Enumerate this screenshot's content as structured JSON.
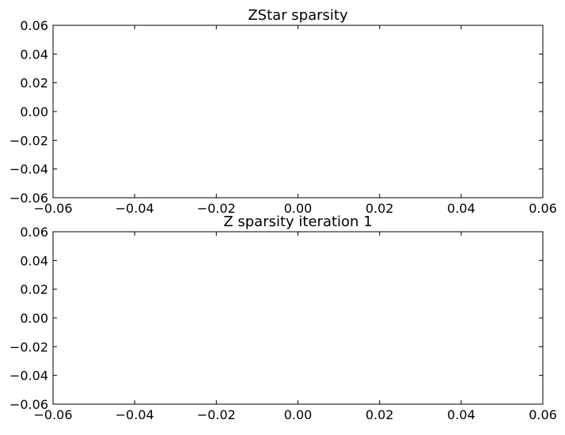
{
  "chart_data": [
    {
      "type": "scatter",
      "title": "ZStar sparsity",
      "xlabel": "",
      "ylabel": "",
      "xlim": [
        -0.06,
        0.06
      ],
      "ylim": [
        -0.06,
        0.06
      ],
      "xticks": [
        "−0.06",
        "−0.04",
        "−0.02",
        "0.00",
        "0.02",
        "0.04",
        "0.06"
      ],
      "yticks": [
        "−0.06",
        "−0.04",
        "−0.02",
        "0.00",
        "0.02",
        "0.04",
        "0.06"
      ],
      "grid": false,
      "series": [
        {
          "x": [],
          "y": []
        }
      ]
    },
    {
      "type": "scatter",
      "title": "Z sparsity iteration 1",
      "xlabel": "",
      "ylabel": "",
      "xlim": [
        -0.06,
        0.06
      ],
      "ylim": [
        -0.06,
        0.06
      ],
      "xticks": [
        "−0.06",
        "−0.04",
        "−0.02",
        "0.00",
        "0.02",
        "0.04",
        "0.06"
      ],
      "yticks": [
        "−0.06",
        "−0.04",
        "−0.02",
        "0.00",
        "0.02",
        "0.04",
        "0.06"
      ],
      "grid": false,
      "series": [
        {
          "x": [],
          "y": []
        }
      ]
    }
  ]
}
